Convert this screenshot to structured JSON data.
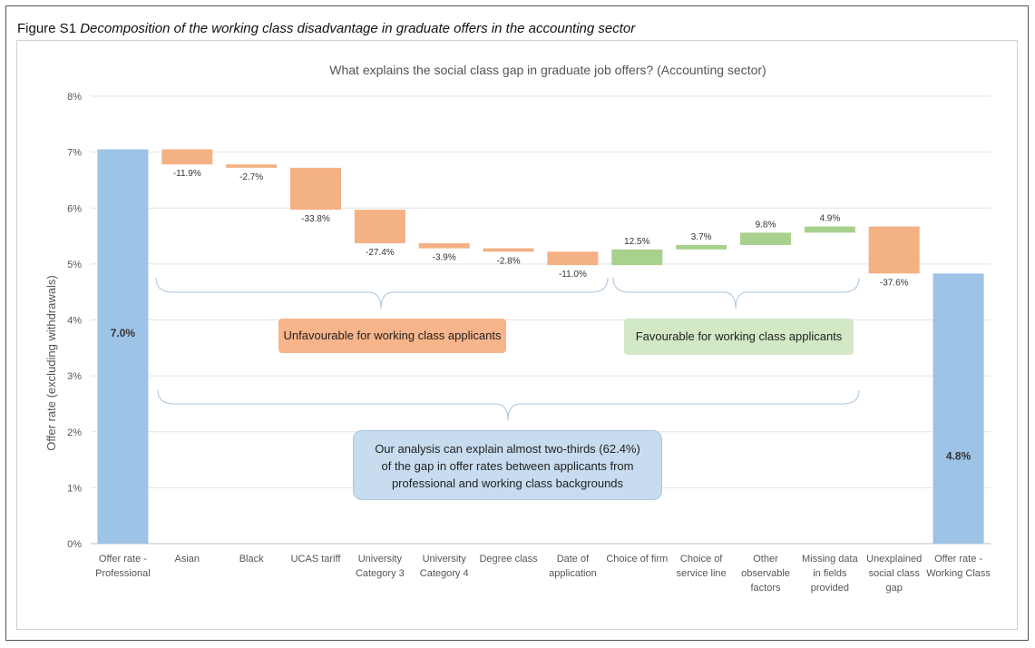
{
  "figure": {
    "caption_prefix": "Figure S1",
    "caption_title": "Decomposition of the working class disadvantage in graduate offers in the accounting sector"
  },
  "chart_data": {
    "type": "waterfall",
    "title": "What explains the social class gap in graduate job offers? (Accounting sector)",
    "ylabel": "Offer rate (excluding withdrawals)",
    "ylim": [
      0,
      8
    ],
    "yticks": [
      "0%",
      "1%",
      "2%",
      "3%",
      "4%",
      "5%",
      "6%",
      "7%",
      "8%"
    ],
    "grid": true,
    "colors": {
      "total": "#9dc3e6",
      "negative": "#f4b183",
      "positive": "#a9d18e"
    },
    "bars": [
      {
        "category": [
          "Offer rate -",
          "Professional"
        ],
        "kind": "total",
        "start": 0,
        "end": 7.05,
        "label": "7.0%"
      },
      {
        "category": [
          "Asian"
        ],
        "kind": "negative",
        "start": 7.05,
        "end": 6.78,
        "label": "-11.9%"
      },
      {
        "category": [
          "Black"
        ],
        "kind": "negative",
        "start": 6.78,
        "end": 6.72,
        "label": "-2.7%"
      },
      {
        "category": [
          "UCAS tariff"
        ],
        "kind": "negative",
        "start": 6.72,
        "end": 5.97,
        "label": "-33.8%"
      },
      {
        "category": [
          "University",
          "Category 3"
        ],
        "kind": "negative",
        "start": 5.97,
        "end": 5.37,
        "label": "-27.4%"
      },
      {
        "category": [
          "University",
          "Category 4"
        ],
        "kind": "negative",
        "start": 5.37,
        "end": 5.28,
        "label": "-3.9%"
      },
      {
        "category": [
          "Degree class"
        ],
        "kind": "negative",
        "start": 5.28,
        "end": 5.22,
        "label": "-2.8%"
      },
      {
        "category": [
          "Date of",
          "application"
        ],
        "kind": "negative",
        "start": 5.22,
        "end": 4.98,
        "label": "-11.0%"
      },
      {
        "category": [
          "Choice of firm"
        ],
        "kind": "positive",
        "start": 4.98,
        "end": 5.26,
        "label": "12.5%"
      },
      {
        "category": [
          "Choice of",
          "service line"
        ],
        "kind": "positive",
        "start": 5.26,
        "end": 5.34,
        "label": "3.7%"
      },
      {
        "category": [
          "Other",
          "observable",
          "factors"
        ],
        "kind": "positive",
        "start": 5.34,
        "end": 5.56,
        "label": "9.8%"
      },
      {
        "category": [
          "Missing data",
          "in fields",
          "provided"
        ],
        "kind": "positive",
        "start": 5.56,
        "end": 5.67,
        "label": "4.9%"
      },
      {
        "category": [
          "Unexplained",
          "social class",
          "gap"
        ],
        "kind": "negative",
        "start": 5.67,
        "end": 4.83,
        "label": "-37.6%"
      },
      {
        "category": [
          "Offer rate -",
          "Working Class"
        ],
        "kind": "total",
        "start": 0,
        "end": 4.83,
        "label": "4.8%"
      }
    ],
    "annotations": {
      "unfavourable": "Unfavourable for working class applicants",
      "favourable": "Favourable for working class applicants",
      "analysis_lines": [
        "Our analysis can explain almost two-thirds (62.4%)",
        "of the gap in offer rates between applicants from",
        "professional and working class backgrounds"
      ]
    }
  }
}
